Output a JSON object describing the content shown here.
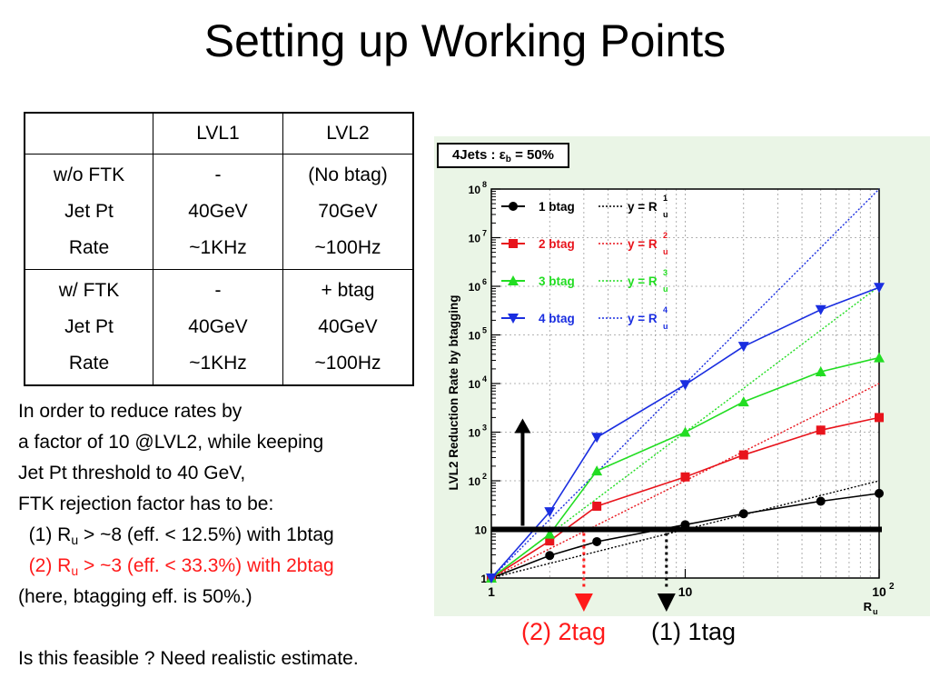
{
  "slide": {
    "title": "Setting up Working Points"
  },
  "table": {
    "headers": [
      "",
      "LVL1",
      "LVL2"
    ],
    "groups": [
      {
        "rows": [
          [
            "w/o FTK",
            "-",
            "(No btag)"
          ],
          [
            "Jet Pt",
            "40GeV",
            "70GeV"
          ],
          [
            "Rate",
            "~1KHz",
            "~100Hz"
          ]
        ]
      },
      {
        "rows": [
          [
            "w/ FTK",
            "-",
            "+ btag"
          ],
          [
            "Jet Pt",
            "40GeV",
            "40GeV"
          ],
          [
            "Rate",
            "~1KHz",
            "~100Hz"
          ]
        ]
      }
    ]
  },
  "text": {
    "line1": "In order to reduce rates by",
    "line2": "a factor of 10 @LVL2, while keeping",
    "line3": "Jet Pt threshold to 40 GeV,",
    "line4": "FTK rejection factor has to be:",
    "opt1": {
      "pre": "(1) R",
      "sub": "u",
      "post": " > ~8 (eff. < 12.5%) with 1btag"
    },
    "opt2": {
      "pre": "(2) R",
      "sub": "u",
      "post": " > ~3 (eff. < 33.3%) with 2btag"
    },
    "line7": "(here, btagging eff. is 50%.)",
    "line8": "Is this feasible ? Need realistic estimate."
  },
  "panel": {
    "title_pre": "4Jets : ε",
    "title_sub": "b",
    "title_post": " = 50%"
  },
  "annotations": {
    "tag2": "(2) 2tag",
    "tag1": "(1) 1tag"
  },
  "chart_data": {
    "type": "line",
    "ylabel": "LVL2 Reduction Rate by btagging",
    "xlabel_main": "R",
    "xlabel_sub": "u",
    "x_scale": "log",
    "y_scale": "log",
    "xlim": [
      1,
      100
    ],
    "ylim": [
      1,
      100000000
    ],
    "grid": true,
    "legend_position": "top-left",
    "x_ticks": [
      {
        "value": 1,
        "label": "1"
      },
      {
        "value": 10,
        "label": "10"
      },
      {
        "value": 100,
        "label": "10",
        "sup": "2"
      }
    ],
    "y_ticks": [
      {
        "value": 1,
        "label": "1"
      },
      {
        "value": 10,
        "label": "10"
      },
      {
        "value": 100,
        "label": "10",
        "sup": "2"
      },
      {
        "value": 1000,
        "label": "10",
        "sup": "3"
      },
      {
        "value": 10000,
        "label": "10",
        "sup": "4"
      },
      {
        "value": 100000,
        "label": "10",
        "sup": "5"
      },
      {
        "value": 1000000,
        "label": "10",
        "sup": "6"
      },
      {
        "value": 10000000,
        "label": "10",
        "sup": "7"
      },
      {
        "value": 100000000,
        "label": "10",
        "sup": "8"
      }
    ],
    "series": [
      {
        "name": "1 btag",
        "color": "#000000",
        "marker": "circle",
        "x": [
          1,
          2,
          3.5,
          10,
          20,
          50,
          100
        ],
        "y": [
          1,
          2.9,
          5.6,
          12.5,
          21,
          38,
          55
        ]
      },
      {
        "name": "2 btag",
        "color": "#e8141c",
        "marker": "square",
        "x": [
          1,
          2,
          3.5,
          10,
          20,
          50,
          100
        ],
        "y": [
          1,
          5.8,
          30,
          120,
          340,
          1100,
          2000
        ]
      },
      {
        "name": "3 btag",
        "color": "#22dd22",
        "marker": "triangle-up",
        "x": [
          1,
          2,
          3.5,
          10,
          20,
          50,
          100
        ],
        "y": [
          1,
          8,
          160,
          1000,
          4200,
          17500,
          34000
        ]
      },
      {
        "name": "4 btag",
        "color": "#1a2ee0",
        "marker": "triangle-down",
        "x": [
          1,
          2,
          3.5,
          10,
          20,
          50,
          100
        ],
        "y": [
          1,
          23,
          780,
          9500,
          58000,
          330000,
          950000
        ]
      }
    ],
    "reference_lines": [
      {
        "label": "y = R",
        "sub": "u",
        "sup": "1",
        "power": 1,
        "color": "#000000"
      },
      {
        "label": "y = R",
        "sub": "u",
        "sup": "2",
        "power": 2,
        "color": "#e8141c"
      },
      {
        "label": "y = R",
        "sub": "u",
        "sup": "3",
        "power": 3,
        "color": "#22dd22"
      },
      {
        "label": "y = R",
        "sub": "u",
        "sup": "4",
        "power": 4,
        "color": "#1a2ee0"
      }
    ],
    "threshold": {
      "y": 10,
      "color": "#000000"
    },
    "markers": [
      {
        "x": 3,
        "color": "#ff1a1a"
      },
      {
        "x": 8,
        "color": "#000000"
      }
    ]
  }
}
